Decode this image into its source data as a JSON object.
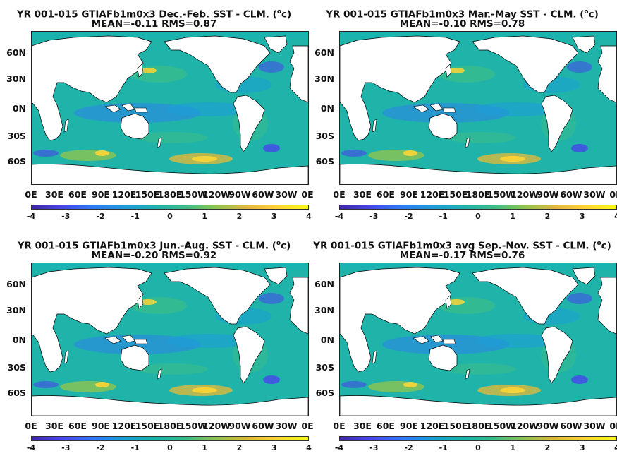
{
  "panels": [
    {
      "title_line1": "YR 001-015 GTIAFb1m0x3  Dec.-Feb. SST - CLM. (",
      "unit_sup": "o",
      "unit_close": "c)",
      "title_line2": "MEAN=-0.11   RMS=0.87"
    },
    {
      "title_line1": "YR 001-015 GTIAFb1m0x3 Mar.-May SST - CLM. (",
      "unit_sup": "o",
      "unit_close": "c)",
      "title_line2": "MEAN=-0.10   RMS=0.78"
    },
    {
      "title_line1": "YR 001-015 GTIAFb1m0x3 Jun.-Aug. SST - CLM. (",
      "unit_sup": "o",
      "unit_close": "c)",
      "title_line2": "MEAN=-0.20   RMS=0.92"
    },
    {
      "title_line1": "YR 001-015 GTIAFb1m0x3 avg Sep.-Nov. SST - CLM. (",
      "unit_sup": "o",
      "unit_close": "c)",
      "title_line2": "MEAN=-0.17   RMS=0.76"
    }
  ],
  "lat_ticks": [
    "60N",
    "30N",
    "0N",
    "30S",
    "60S"
  ],
  "lon_ticks": [
    "0E",
    "30E",
    "60E",
    "90E",
    "120E",
    "150E",
    "180E",
    "150W",
    "120W",
    "90W",
    "60W",
    "30W",
    "0E"
  ],
  "colorbar_ticks": [
    "-4",
    "-3",
    "-2",
    "-1",
    "0",
    "1",
    "2",
    "3",
    "4"
  ],
  "colors": {
    "land": "#ffffff",
    "ocean_base": "#3cb4a6",
    "colormap": [
      "#3e26a8",
      "#4746eb",
      "#2f78f9",
      "#1c9dd9",
      "#1ab3af",
      "#3bbd89",
      "#8dc451",
      "#dfb93c",
      "#fcd535",
      "#f9fb15"
    ]
  }
}
